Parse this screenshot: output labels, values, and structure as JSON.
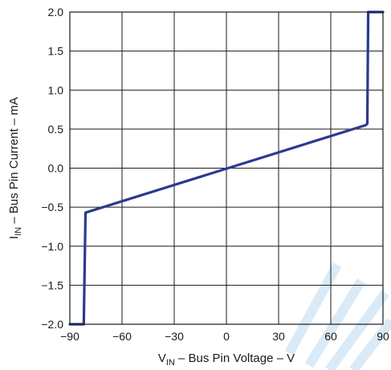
{
  "chart_data": {
    "type": "line",
    "xlabel_main": "V",
    "xlabel_sub": "IN",
    "xlabel_rest": " – Bus Pin Voltage – V",
    "ylabel_main": "I",
    "ylabel_sub": "IN",
    "ylabel_rest": " – Bus Pin Current – mA",
    "xlim": [
      -90,
      90
    ],
    "ylim": [
      -2.0,
      2.0
    ],
    "x_ticks": [
      -90,
      -60,
      -30,
      0,
      30,
      60,
      90
    ],
    "x_tick_labels": [
      "−90",
      "−60",
      "−30",
      "0",
      "30",
      "60",
      "90"
    ],
    "y_ticks": [
      2.0,
      1.5,
      1.0,
      0.5,
      0.0,
      -0.5,
      -1.0,
      -1.5,
      -2.0
    ],
    "y_tick_labels": [
      "2.0",
      "1.5",
      "1.0",
      "0.5",
      "0.0",
      "−0.5",
      "−1.0",
      "−1.5",
      "−2.0"
    ],
    "grid": true,
    "series": [
      {
        "color": "#2b3a8c",
        "x": [
          -90,
          -82,
          -81,
          80,
          81,
          81.5,
          90
        ],
        "y": [
          -2.0,
          -2.0,
          -0.57,
          0.55,
          0.57,
          2.0,
          2.0
        ]
      }
    ]
  },
  "watermark_color": "#bcd9f0"
}
